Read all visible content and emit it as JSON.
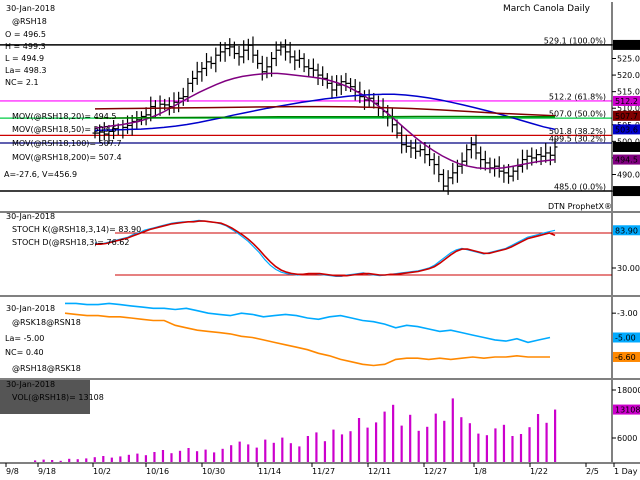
{
  "chart_data": [
    {
      "type": "ohlc",
      "title": "March Canola Daily",
      "date_label": "30-Jan-2018",
      "symbol_label": "@RSH18",
      "info": [
        {
          "label": "O = 496.5"
        },
        {
          "label": "H = 499.3"
        },
        {
          "label": "L = 494.9"
        },
        {
          "label": "La= 498.3"
        },
        {
          "label": "NC= 2.1"
        }
      ],
      "moving_averages": [
        {
          "label": "MOV(@RSH18,20)= 494.5",
          "color": "#800080",
          "last": 494.5
        },
        {
          "label": "MOV(@RSH18,50)= 503.6",
          "color": "#0000cc",
          "last": 503.6
        },
        {
          "label": "MOV(@RSH18,100)= 507.7",
          "color": "#800000",
          "last": 507.7
        },
        {
          "label": "MOV(@RSH18,200)= 507.4",
          "color": "#008000",
          "last": 507.4
        }
      ],
      "extra_label": "A=-27.6, V=456.9",
      "watermark": "DTN ProphetX®",
      "ylim": [
        482,
        533
      ],
      "price_ticks": [
        529.1,
        525.0,
        520.0,
        515.0,
        510.0,
        505.0,
        500.0,
        495.0,
        490.0,
        485.0
      ],
      "right_tags": [
        {
          "value": 529.1,
          "text": "529.1",
          "bg": "#000000",
          "fg": "#ffffff"
        },
        {
          "value": 512.2,
          "text": "512.2",
          "bg": "#cc00cc",
          "fg": "#ffffff"
        },
        {
          "value": 507.7,
          "text": "507.7",
          "bg": "#800000",
          "fg": "#ffffff"
        },
        {
          "value": 503.6,
          "text": "503.6",
          "bg": "#0000cc",
          "fg": "#ffffff"
        },
        {
          "value": 498.3,
          "text": "498.3",
          "bg": "#000000",
          "fg": "#ffffff"
        },
        {
          "value": 494.5,
          "text": "494.5",
          "bg": "#800080",
          "fg": "#ffffff"
        },
        {
          "value": 485.0,
          "text": "485.0",
          "bg": "#000000",
          "fg": "#ffffff"
        }
      ],
      "fib_levels": [
        {
          "value": 529.1,
          "label": "529.1 (100.0%)",
          "color": "#000000"
        },
        {
          "value": 512.2,
          "label": "512.2 (61.8%)",
          "color": "#ff00ff"
        },
        {
          "value": 507.0,
          "label": "507.0 (50.0%)",
          "color": "#00cc44"
        },
        {
          "value": 501.8,
          "label": "501.8 (38.2%)",
          "color": "#cc0000"
        },
        {
          "value": 499.5,
          "label": "499.5 (30.2%)",
          "color": "#000080"
        },
        {
          "value": 485.0,
          "label": "485.0 (0.0%)",
          "color": "#000000"
        }
      ],
      "close_series": [
        502.5,
        502.8,
        502.2,
        503.0,
        503.8,
        503.5,
        504.2,
        504.8,
        506.0,
        506.5,
        507.5,
        508.0,
        510.5,
        510.0,
        511.2,
        511.0,
        510.5,
        511.8,
        513.0,
        513.5,
        517.5,
        519.0,
        521.0,
        522.0,
        524.0,
        523.5,
        526.0,
        527.0,
        528.0,
        528.5,
        526.5,
        525.5,
        527.5,
        529.0,
        526.0,
        523.5,
        521.0,
        522.5,
        525.0,
        527.5,
        528.5,
        527.0,
        525.5,
        524.5,
        525.0,
        522.5,
        522.0,
        521.5,
        520.0,
        519.0,
        517.5,
        515.5,
        517.0,
        518.0,
        517.5,
        516.5,
        515.0,
        513.5,
        512.5,
        513.0,
        511.5,
        510.0,
        509.0,
        507.5,
        505.0,
        502.5,
        499.0,
        498.5,
        498.0,
        497.0,
        497.5,
        496.0,
        494.5,
        493.0,
        490.0,
        486.5,
        489.0,
        490.5,
        492.5,
        494.0,
        497.5,
        499.0,
        496.5,
        494.5,
        493.5,
        492.0,
        492.5,
        491.0,
        490.5,
        489.5,
        491.0,
        492.5,
        494.5,
        495.5,
        495.0,
        496.0,
        495.5,
        496.5,
        495.8,
        498.3
      ],
      "ma20": [
        504.0,
        504.3,
        504.7,
        505.0,
        505.5,
        506.0,
        506.8,
        507.8,
        509.0,
        510.5,
        512.0,
        513.4,
        514.8,
        516.0,
        517.2,
        518.2,
        519.0,
        519.6,
        520.0,
        520.3,
        520.5,
        520.5,
        520.3,
        520.0,
        519.7,
        519.4,
        519.0,
        518.4,
        517.6,
        516.6,
        515.3,
        513.8,
        512.0,
        510.0,
        507.8,
        505.5,
        503.2,
        501.0,
        499.0,
        497.2,
        495.6,
        494.3,
        493.2,
        492.5,
        492.0,
        491.8,
        491.8,
        492.0,
        492.4,
        492.9,
        493.4,
        493.9,
        494.2,
        494.5
      ],
      "ma50": [
        503.3,
        503.4,
        503.5,
        503.6,
        503.7,
        503.9,
        504.2,
        504.6,
        505.1,
        505.7,
        506.4,
        507.1,
        507.9,
        508.6,
        509.3,
        510.0,
        510.6,
        511.2,
        511.8,
        512.3,
        512.8,
        513.2,
        513.6,
        513.9,
        514.1,
        514.2,
        514.2,
        514.0,
        513.6,
        513.1,
        512.5,
        511.8,
        511.0,
        510.2,
        509.3,
        508.4,
        507.4,
        506.4,
        505.4,
        504.4,
        503.6
      ],
      "ma100": [
        509.8,
        509.9,
        510.0,
        510.1,
        510.2,
        510.3,
        510.4,
        510.5,
        510.5,
        510.4,
        510.2,
        509.9,
        509.5,
        509.0,
        508.5,
        508.1,
        507.7
      ],
      "ma200": [
        507.0,
        507.1,
        507.2,
        507.3,
        507.4,
        507.4,
        507.4,
        507.5,
        507.5,
        507.4,
        507.4
      ],
      "x_labels": [
        "9/8",
        "9/18",
        "10/2",
        "10/16",
        "10/30",
        "11/14",
        "11/27",
        "12/11",
        "12/27",
        "1/8",
        "1/22",
        "2/5",
        "1 Day"
      ]
    },
    {
      "type": "line",
      "date_label": "30-Jan-2018",
      "series_labels": [
        {
          "label": "STOCH K(@RSH18,3,14)= 83.90",
          "color": "#00aaff",
          "last": 83.9
        },
        {
          "label": "STOCH D(@RSH18,3)= 76.62",
          "color": "#cc0000",
          "last": 76.62
        }
      ],
      "ylim": [
        0,
        100
      ],
      "ticks": [
        83.9,
        30.0
      ],
      "ref_levels": [
        80,
        20
      ],
      "stoch_k": [
        66,
        64,
        66,
        68,
        70,
        72,
        74,
        78,
        80,
        84,
        86,
        88,
        90,
        92,
        94,
        95,
        96,
        96,
        97,
        98,
        97,
        96,
        95,
        93,
        90,
        85,
        80,
        74,
        68,
        60,
        52,
        42,
        34,
        28,
        24,
        22,
        21,
        20,
        21,
        22,
        22,
        21,
        20,
        19,
        18,
        18,
        20,
        21,
        22,
        23,
        21,
        20,
        19,
        20,
        21,
        22,
        23,
        24,
        25,
        26,
        28,
        30,
        34,
        40,
        46,
        52,
        56,
        58,
        56,
        54,
        52,
        50,
        52,
        54,
        56,
        58,
        62,
        66,
        70,
        74,
        76,
        78,
        80,
        82,
        83.9
      ],
      "stoch_d": [
        64,
        64,
        65,
        67,
        69,
        71,
        73,
        76,
        79,
        82,
        85,
        87,
        89,
        91,
        93,
        94,
        95,
        96,
        96,
        97,
        97,
        96,
        95,
        94,
        91,
        87,
        82,
        77,
        71,
        64,
        56,
        47,
        39,
        32,
        27,
        24,
        22,
        21,
        21,
        22,
        22,
        22,
        21,
        20,
        19,
        19,
        19,
        20,
        21,
        22,
        22,
        21,
        20,
        20,
        21,
        21,
        22,
        23,
        24,
        25,
        27,
        29,
        32,
        37,
        43,
        49,
        54,
        57,
        57,
        55,
        53,
        51,
        51,
        53,
        55,
        57,
        60,
        64,
        68,
        72,
        74,
        76,
        78,
        80,
        76.62
      ]
    },
    {
      "type": "line",
      "date_label": "30-Jan-2018",
      "title": "@RSK18@RSN18",
      "series_labels": [
        {
          "label": "@RSK18@RSN18",
          "color": "#00aaff",
          "last": -5.0
        },
        {
          "label": "@RSH18@RSK18",
          "color": "#ff8800",
          "last": -6.6
        }
      ],
      "info": [
        "La= -5.00",
        "NC= 0.40"
      ],
      "ylim": [
        -8.0,
        -2.0
      ],
      "ticks": [
        -3.0,
        -5.0,
        -6.6
      ],
      "tags": [
        {
          "value": -5.0,
          "text": "-5.00",
          "bg": "#00aaff",
          "fg": "#000000"
        },
        {
          "value": -6.6,
          "text": "-6.60",
          "bg": "#ff8800",
          "fg": "#000000"
        }
      ],
      "spread_kn": [
        -2.2,
        -2.2,
        -2.3,
        -2.3,
        -2.2,
        -2.3,
        -2.4,
        -2.5,
        -2.6,
        -2.6,
        -2.7,
        -2.6,
        -2.8,
        -3.0,
        -3.1,
        -3.2,
        -3.0,
        -3.1,
        -3.3,
        -3.2,
        -3.1,
        -3.2,
        -3.4,
        -3.5,
        -3.3,
        -3.2,
        -3.4,
        -3.6,
        -3.7,
        -3.9,
        -4.2,
        -4.0,
        -4.1,
        -4.3,
        -4.5,
        -4.4,
        -4.6,
        -4.8,
        -5.0,
        -5.2,
        -5.3,
        -5.1,
        -5.4,
        -5.2,
        -5.0
      ],
      "spread_hk": [
        -3.0,
        -3.1,
        -3.2,
        -3.2,
        -3.3,
        -3.3,
        -3.4,
        -3.5,
        -3.6,
        -3.6,
        -4.0,
        -4.2,
        -4.4,
        -4.5,
        -4.6,
        -4.7,
        -4.9,
        -5.0,
        -5.2,
        -5.4,
        -5.6,
        -5.8,
        -6.0,
        -6.3,
        -6.5,
        -6.8,
        -7.0,
        -7.2,
        -7.3,
        -7.2,
        -6.8,
        -6.7,
        -6.7,
        -6.8,
        -6.7,
        -6.8,
        -6.7,
        -6.6,
        -6.7,
        -6.6,
        -6.6,
        -6.5,
        -6.6,
        -6.6,
        -6.6
      ]
    },
    {
      "type": "bar",
      "date_label": "30-Jan-2018",
      "series_labels": [
        {
          "label": "VOL(@RSH18)= 13108",
          "color": "#cc00cc"
        }
      ],
      "ylim": [
        0,
        19000
      ],
      "ticks": [
        18000,
        13108,
        6000,
        0
      ],
      "volume": [
        400,
        600,
        500,
        300,
        800,
        700,
        900,
        1200,
        1500,
        1100,
        1400,
        1800,
        2100,
        1700,
        2500,
        3000,
        2200,
        2800,
        3500,
        2700,
        3100,
        2400,
        3300,
        4200,
        5100,
        4400,
        3600,
        5600,
        4800,
        6100,
        4700,
        3900,
        6500,
        7400,
        5200,
        8100,
        6900,
        7700,
        11000,
        8600,
        9900,
        12600,
        14300,
        9100,
        11800,
        7800,
        8800,
        12100,
        10300,
        15900,
        11200,
        9700,
        7100,
        6700,
        8400,
        9300,
        6500,
        7000,
        8700,
        12000,
        9800,
        13108
      ]
    }
  ]
}
